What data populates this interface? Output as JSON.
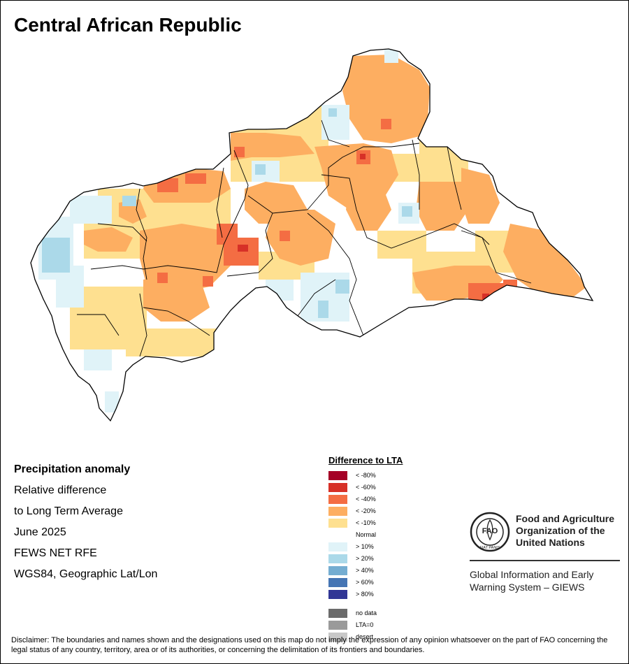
{
  "title": "Central African Republic",
  "info": {
    "heading": "Precipitation anomaly",
    "line1": "Relative difference",
    "line2": "to Long Term Average",
    "period": "June 2025",
    "source": "FEWS NET RFE",
    "projection": "WGS84, Geographic Lat/Lon"
  },
  "legend": {
    "title": "Difference to LTA",
    "items": [
      {
        "label": "< -80%",
        "color": "#a50026"
      },
      {
        "label": "< -60%",
        "color": "#d73027"
      },
      {
        "label": "< -40%",
        "color": "#f46d43"
      },
      {
        "label": "< -20%",
        "color": "#fdae61"
      },
      {
        "label": "< -10%",
        "color": "#fee090"
      },
      {
        "label": "Normal",
        "color": "#ffffff"
      },
      {
        "label": "> 10%",
        "color": "#e0f3f8"
      },
      {
        "label": "> 20%",
        "color": "#abd9e9"
      },
      {
        "label": "> 40%",
        "color": "#74add1"
      },
      {
        "label": "> 60%",
        "color": "#4575b4"
      },
      {
        "label": "> 80%",
        "color": "#313695"
      }
    ],
    "extra": [
      {
        "label": "no data",
        "color": "#6b6b6b"
      },
      {
        "label": "LTA=0",
        "color": "#9a9a9a"
      },
      {
        "label": "desert",
        "color": "#c8c8c8"
      }
    ]
  },
  "fao": {
    "name_line1": "Food and Agriculture",
    "name_line2": "Organization of the",
    "name_line3": "United Nations",
    "giews_line1": "Global Information and Early",
    "giews_line2": "Warning System – GIEWS",
    "logo_text": "FAO",
    "logo_motto": "FIAT PANIS"
  },
  "disclaimer": "Disclaimer: The boundaries and names shown and the designations used on this map do not imply the expression of any opinion whatsoever on the part of FAO concerning the legal status of any country, territory, area or of its authorities, or concerning the delimitation of its frontiers and boundaries."
}
